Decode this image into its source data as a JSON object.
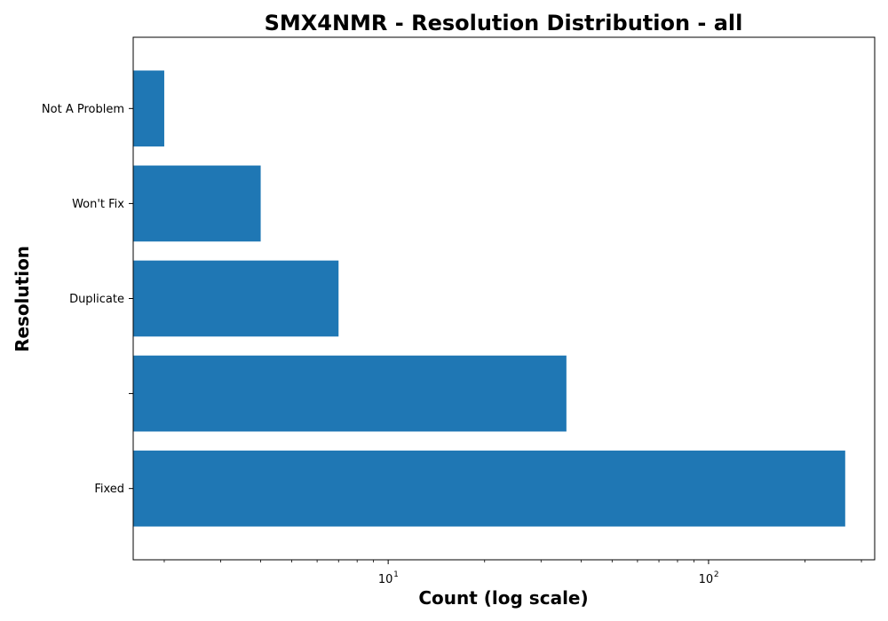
{
  "chart_data": {
    "type": "bar",
    "orientation": "horizontal",
    "title": "SMX4NMR - Resolution Distribution - all",
    "xlabel": "Count (log scale)",
    "ylabel": "Resolution",
    "xscale": "log",
    "xlim": [
      1.6,
      330
    ],
    "categories": [
      "Fixed",
      "",
      "Duplicate",
      "Won't Fix",
      "Not A Problem"
    ],
    "values": [
      267,
      36,
      7,
      4,
      2
    ],
    "x_major_ticks": [
      {
        "value": 10,
        "base": "10",
        "exponent": "1"
      },
      {
        "value": 100,
        "base": "10",
        "exponent": "2"
      }
    ],
    "bar_color": "#1f77b4",
    "grid": false,
    "legend": "none"
  }
}
